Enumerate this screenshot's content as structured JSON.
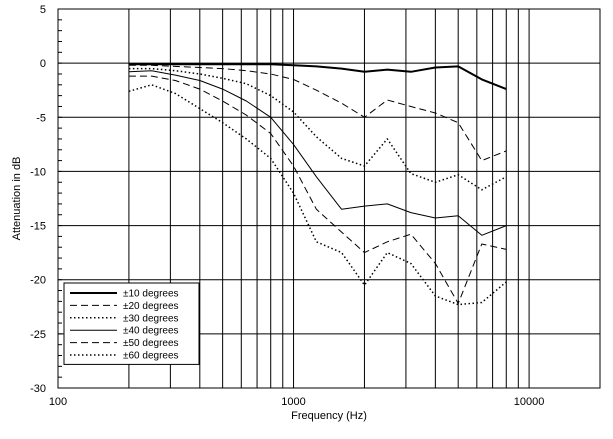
{
  "chart_data": {
    "type": "line",
    "title": "",
    "xlabel": "Frequency (Hz)",
    "ylabel": "Attenuation in dB",
    "xscale": "log",
    "xlim": [
      100,
      20000
    ],
    "ylim": [
      -30,
      5
    ],
    "xticks": [
      100,
      1000,
      10000
    ],
    "xtick_labels": [
      "100",
      "1000",
      "10000"
    ],
    "yticks": [
      5,
      0,
      -5,
      -10,
      -15,
      -20,
      -25,
      -30
    ],
    "ytick_labels": [
      "5",
      "0",
      "-5",
      "-10",
      "-15",
      "-20",
      "-25",
      "-30"
    ],
    "grid": true,
    "legend_position": "bottom-left",
    "series": [
      {
        "name": "±10 degrees",
        "style": "solid",
        "width": 2.0,
        "x": [
          200,
          250,
          315,
          400,
          500,
          630,
          800,
          1000,
          1250,
          1600,
          2000,
          2500,
          3150,
          4000,
          5000,
          6300,
          8000
        ],
        "y": [
          -0.1,
          -0.1,
          -0.1,
          -0.1,
          -0.1,
          -0.1,
          -0.1,
          -0.2,
          -0.3,
          -0.5,
          -0.8,
          -0.6,
          -0.8,
          -0.4,
          -0.3,
          -1.5,
          -2.4
        ]
      },
      {
        "name": "±20 degrees",
        "style": "dashed",
        "width": 1.0,
        "x": [
          200,
          250,
          315,
          400,
          500,
          630,
          800,
          1000,
          1250,
          1600,
          2000,
          2500,
          3150,
          4000,
          5000,
          6300,
          8000
        ],
        "y": [
          -0.2,
          -0.2,
          -0.3,
          -0.4,
          -0.5,
          -0.7,
          -1.0,
          -1.5,
          -2.5,
          -3.7,
          -5.0,
          -3.4,
          -4.0,
          -4.6,
          -5.5,
          -9.0,
          -8.1
        ]
      },
      {
        "name": "±30 degrees",
        "style": "dotted",
        "width": 1.5,
        "x": [
          200,
          250,
          315,
          400,
          500,
          630,
          800,
          1000,
          1250,
          1600,
          2000,
          2500,
          3150,
          4000,
          5000,
          6300,
          8000
        ],
        "y": [
          -0.5,
          -0.5,
          -0.7,
          -1.0,
          -1.4,
          -1.9,
          -3.0,
          -4.5,
          -6.8,
          -8.8,
          -9.5,
          -7.0,
          -10.2,
          -11.0,
          -10.3,
          -11.7,
          -10.5
        ]
      },
      {
        "name": "±40 degrees",
        "style": "solid",
        "width": 1.0,
        "x": [
          200,
          250,
          315,
          400,
          500,
          630,
          800,
          1000,
          1250,
          1600,
          2000,
          2500,
          3150,
          4000,
          5000,
          6300,
          8000
        ],
        "y": [
          -0.8,
          -0.7,
          -1.1,
          -1.6,
          -2.4,
          -3.5,
          -5.0,
          -7.5,
          -10.5,
          -13.5,
          -13.2,
          -13.0,
          -13.8,
          -14.3,
          -14.1,
          -15.9,
          -15.0
        ]
      },
      {
        "name": "±50 degrees",
        "style": "dashed",
        "width": 1.0,
        "x": [
          200,
          250,
          315,
          400,
          500,
          630,
          800,
          1000,
          1250,
          1600,
          2000,
          2500,
          3150,
          4000,
          5000,
          6300,
          8000
        ],
        "y": [
          -1.2,
          -1.2,
          -1.6,
          -2.4,
          -3.5,
          -4.8,
          -6.5,
          -9.5,
          -13.5,
          -15.6,
          -17.5,
          -16.5,
          -15.8,
          -18.5,
          -22.2,
          -16.7,
          -17.2
        ]
      },
      {
        "name": "±60 degrees",
        "style": "dotted",
        "width": 1.5,
        "x": [
          200,
          250,
          315,
          400,
          500,
          630,
          800,
          1000,
          1250,
          1600,
          2000,
          2500,
          3150,
          4000,
          5000,
          6300,
          8000
        ],
        "y": [
          -2.6,
          -2.0,
          -2.8,
          -4.2,
          -5.5,
          -7.0,
          -8.8,
          -12.0,
          -16.5,
          -17.5,
          -20.5,
          -17.5,
          -18.5,
          -21.5,
          -22.3,
          -22.1,
          -20.2
        ]
      }
    ]
  }
}
